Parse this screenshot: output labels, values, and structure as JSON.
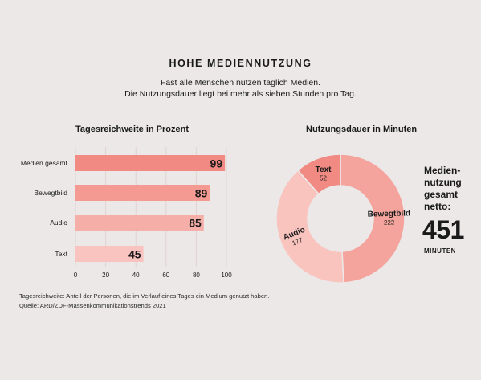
{
  "header": {
    "title": "HOHE MEDIENNUTZUNG",
    "subtitle_line1": "Fast alle Menschen nutzen täglich Medien.",
    "subtitle_line2": "Die Nutzungsdauer liegt bei mehr als sieben Stunden pro Tag."
  },
  "summary": {
    "line1": "Medien-",
    "line2": "nutzung",
    "line3": "gesamt",
    "line4": "netto:",
    "value": "451",
    "unit": "MINUTEN"
  },
  "footnote": {
    "line1": "Tagesreichweite: Anteil der Personen, die im Verlauf eines Tages ein Medium genutzt haben.",
    "line2": "Quelle: ARD/ZDF-Massenkommunikationstrends 2021"
  },
  "chart_data": [
    {
      "type": "bar",
      "title": "Tagesreichweite in Prozent",
      "orientation": "horizontal",
      "categories": [
        "Medien gesamt",
        "Bewegtbild",
        "Audio",
        "Text"
      ],
      "values": [
        99,
        89,
        85,
        45
      ],
      "xlim": [
        0,
        100
      ],
      "xticks": [
        0,
        20,
        40,
        60,
        80,
        100
      ],
      "grid": "vertical",
      "colors": [
        "#f08a82",
        "#f49a93",
        "#f6aea8",
        "#f9c4c0"
      ]
    },
    {
      "type": "pie",
      "donut": true,
      "title": "Nutzungsdauer in Minuten",
      "categories": [
        "Bewegtbild",
        "Audio",
        "Text"
      ],
      "values": [
        222,
        177,
        52
      ],
      "colors": [
        "#f4a49c",
        "#f9c3be",
        "#f08a82"
      ]
    }
  ]
}
